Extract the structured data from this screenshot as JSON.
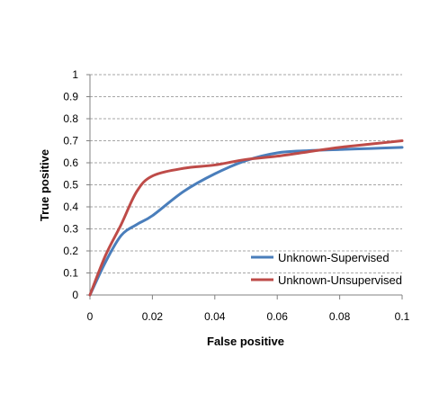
{
  "chart_data": {
    "type": "line",
    "title": "",
    "xlabel": "False positive",
    "ylabel": "True positive",
    "xlim": [
      0,
      0.1
    ],
    "ylim": [
      0,
      1
    ],
    "x_ticks": [
      0,
      0.02,
      0.04,
      0.06,
      0.08,
      0.1
    ],
    "x_tick_labels": [
      "0",
      "0.02",
      "0.04",
      "0.06",
      "0.08",
      "0.1"
    ],
    "y_ticks": [
      0,
      0.1,
      0.2,
      0.3,
      0.4,
      0.5,
      0.6,
      0.7,
      0.8,
      0.9,
      1
    ],
    "y_tick_labels": [
      "0",
      "0.1",
      "0.2",
      "0.3",
      "0.4",
      "0.5",
      "0.6",
      "0.7",
      "0.8",
      "0.9",
      "1"
    ],
    "grid": "horizontal dashed",
    "legend_position": "lower-right",
    "series": [
      {
        "name": "Unknown-Supervised",
        "color": "#4a7ebb",
        "x": [
          0,
          0.005,
          0.01,
          0.015,
          0.02,
          0.03,
          0.04,
          0.05,
          0.06,
          0.07,
          0.08,
          0.09,
          0.1
        ],
        "y": [
          0,
          0.15,
          0.27,
          0.32,
          0.36,
          0.47,
          0.55,
          0.61,
          0.645,
          0.655,
          0.66,
          0.665,
          0.67
        ]
      },
      {
        "name": "Unknown-Unsupervised",
        "color": "#be4b48",
        "x": [
          0,
          0.005,
          0.01,
          0.015,
          0.02,
          0.03,
          0.04,
          0.05,
          0.06,
          0.07,
          0.08,
          0.09,
          0.1
        ],
        "y": [
          0,
          0.18,
          0.32,
          0.47,
          0.54,
          0.575,
          0.59,
          0.615,
          0.63,
          0.65,
          0.67,
          0.685,
          0.7
        ]
      }
    ]
  }
}
